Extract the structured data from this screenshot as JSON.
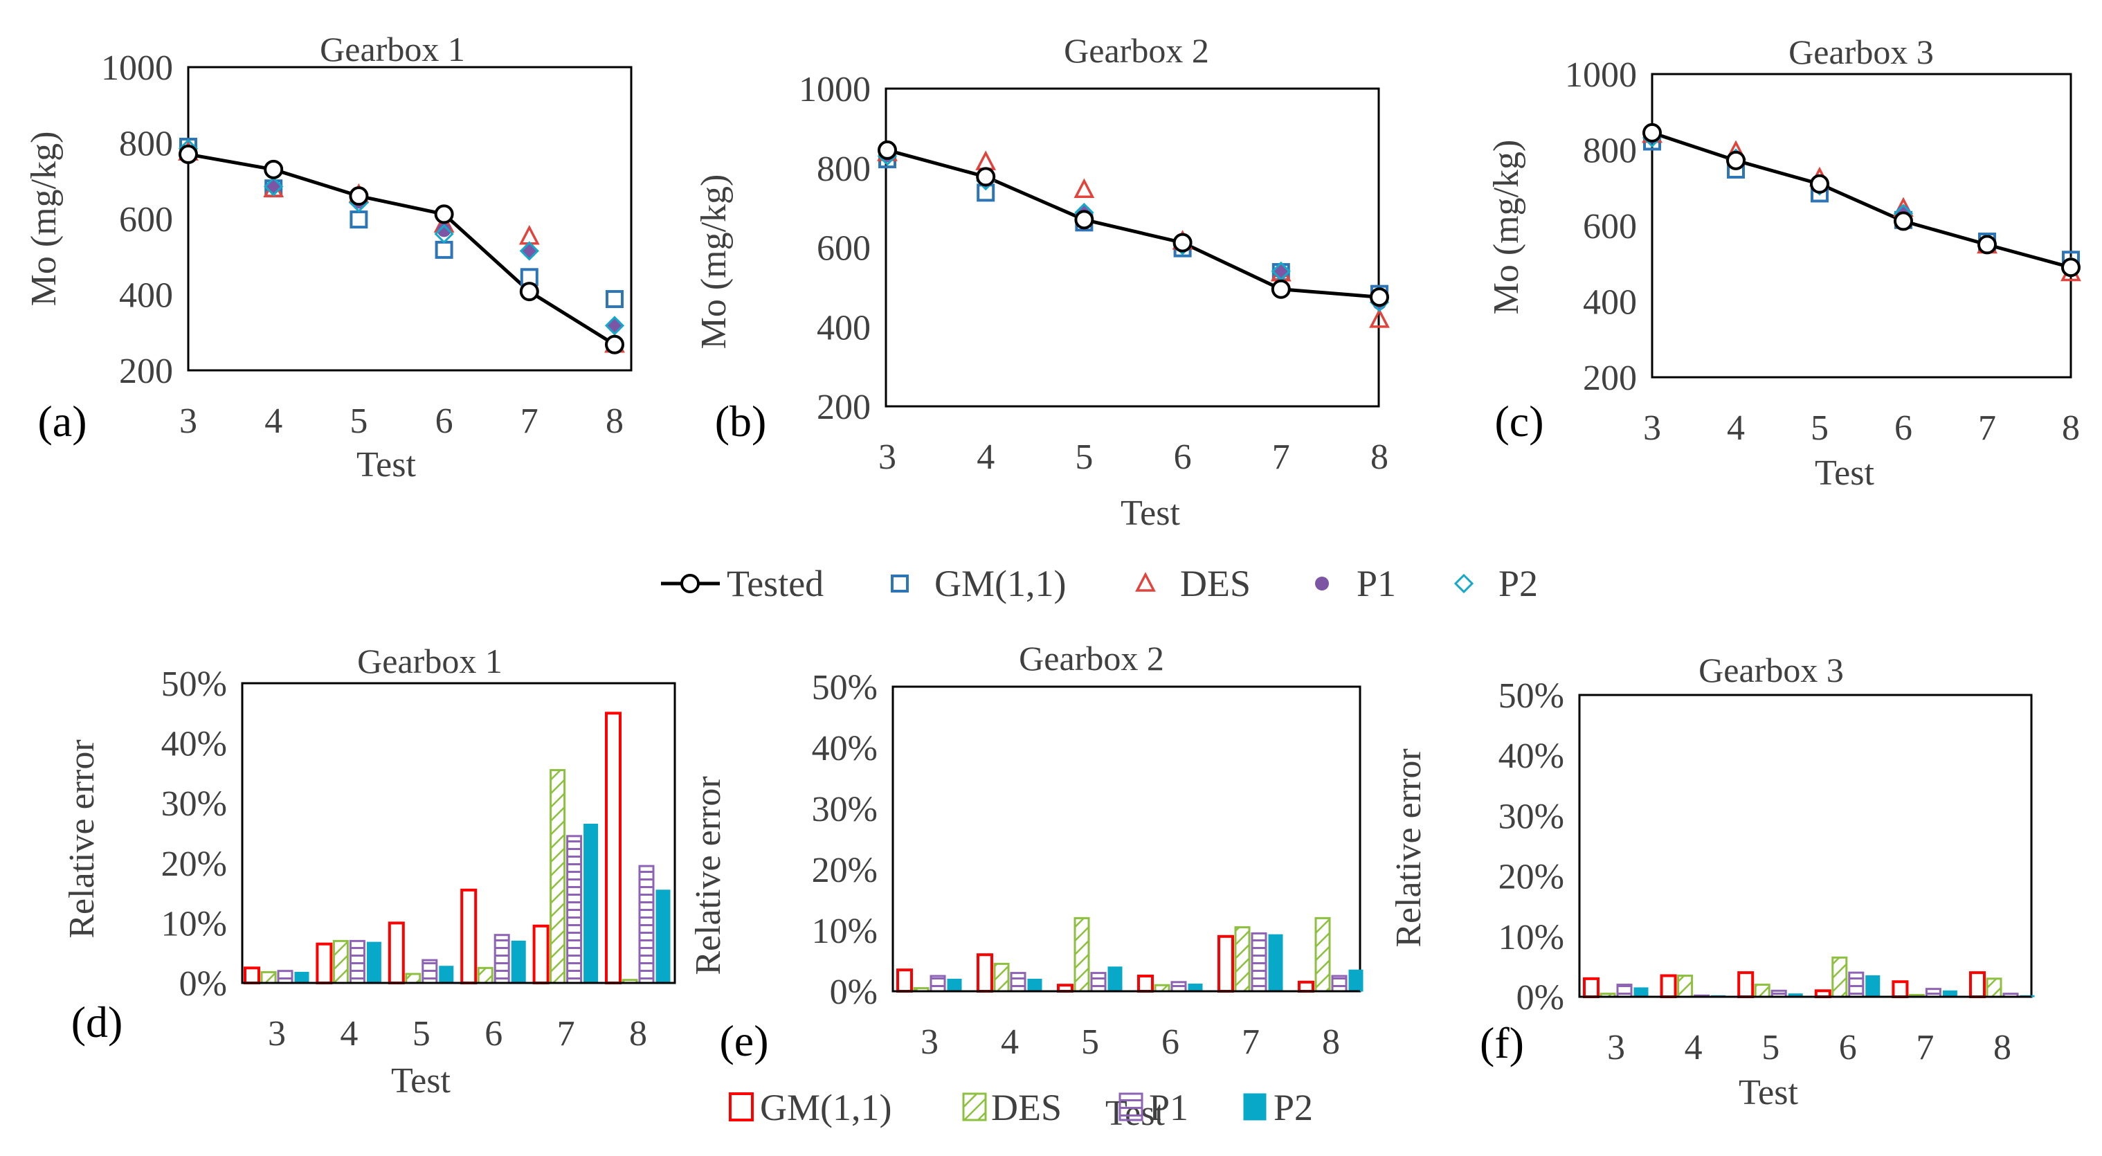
{
  "colors": {
    "tested": "#000000",
    "gm11": "#2E75B6",
    "des": "#E0443C",
    "p1": "#7C55A5",
    "p2": "#15A9C9",
    "bar_gm11": "#FF0000",
    "bar_des": "#8DC03F",
    "bar_p1": "#8E63B5",
    "bar_p2": "#08A8C8",
    "axis_text": "#404040"
  },
  "line_legend": [
    "Tested",
    "GM(1,1)",
    "DES",
    "P1",
    "P2"
  ],
  "bar_legend": [
    "GM(1,1)",
    "DES",
    "P1",
    "P2"
  ],
  "chart_data": [
    {
      "type": "line",
      "panel_label": "(a)",
      "title": "Gearbox 1",
      "xlabel": "Test",
      "ylabel": "Mo (mg/kg)",
      "categories": [
        "3",
        "4",
        "5",
        "6",
        "7",
        "8"
      ],
      "yticks": [
        "200",
        "400",
        "600",
        "800",
        "1000"
      ],
      "ylim": [
        200,
        1000
      ],
      "series": [
        {
          "name": "Tested",
          "values": [
            770,
            730,
            660,
            612,
            408,
            268
          ]
        },
        {
          "name": "GM(1,1)",
          "values": [
            790,
            680,
            598,
            518,
            446,
            388
          ]
        },
        {
          "name": "DES",
          "values": [
            775,
            678,
            663,
            585,
            553,
            268
          ]
        },
        {
          "name": "P1",
          "values": [
            775,
            685,
            645,
            570,
            515,
            318
          ]
        },
        {
          "name": "P2",
          "values": [
            785,
            685,
            642,
            560,
            515,
            318
          ]
        }
      ]
    },
    {
      "type": "line",
      "panel_label": "(b)",
      "title": "Gearbox 2",
      "xlabel": "Test",
      "ylabel": "Mo (mg/kg)",
      "categories": [
        "3",
        "4",
        "5",
        "6",
        "7",
        "8"
      ],
      "yticks": [
        "200",
        "400",
        "600",
        "800",
        "1000"
      ],
      "ylim": [
        200,
        1000
      ],
      "series": [
        {
          "name": "Tested",
          "values": [
            845,
            778,
            670,
            612,
            495,
            475
          ]
        },
        {
          "name": "GM(1,1)",
          "values": [
            822,
            738,
            663,
            598,
            538,
            483
          ]
        },
        {
          "name": "DES",
          "values": [
            838,
            815,
            745,
            615,
            535,
            418
          ]
        },
        {
          "name": "P1",
          "values": [
            832,
            768,
            688,
            605,
            538,
            460
          ]
        },
        {
          "name": "P2",
          "values": [
            830,
            768,
            688,
            605,
            540,
            462
          ]
        }
      ]
    },
    {
      "type": "line",
      "panel_label": "(c)",
      "title": "Gearbox 3",
      "xlabel": "Test",
      "ylabel": "Mo (mg/kg)",
      "categories": [
        "3",
        "4",
        "5",
        "6",
        "7",
        "8"
      ],
      "yticks": [
        "200",
        "400",
        "600",
        "800",
        "1000"
      ],
      "ylim": [
        200,
        1000
      ],
      "series": [
        {
          "name": "Tested",
          "values": [
            845,
            772,
            710,
            612,
            550,
            490
          ]
        },
        {
          "name": "GM(1,1)",
          "values": [
            822,
            748,
            685,
            615,
            558,
            510
          ]
        },
        {
          "name": "DES",
          "values": [
            840,
            795,
            725,
            645,
            548,
            475
          ]
        },
        {
          "name": "P1",
          "values": [
            835,
            780,
            708,
            635,
            552,
            492
          ]
        },
        {
          "name": "P2",
          "values": [
            832,
            778,
            705,
            632,
            553,
            492
          ]
        }
      ]
    },
    {
      "type": "bar",
      "panel_label": "(d)",
      "title": "Gearbox 1",
      "xlabel": "Test",
      "ylabel": "Relative error",
      "categories": [
        "3",
        "4",
        "5",
        "6",
        "7",
        "8"
      ],
      "yticks": [
        "0%",
        "10%",
        "20%",
        "30%",
        "40%",
        "50%"
      ],
      "ylim": [
        0,
        50
      ],
      "series": [
        {
          "name": "GM(1,1)",
          "values": [
            2.5,
            6.5,
            10.0,
            15.5,
            9.5,
            45.0
          ]
        },
        {
          "name": "DES",
          "values": [
            1.8,
            7.0,
            1.5,
            2.5,
            35.5,
            0.5
          ]
        },
        {
          "name": "P1",
          "values": [
            2.0,
            7.0,
            3.8,
            8.0,
            24.5,
            19.5
          ]
        },
        {
          "name": "P2",
          "values": [
            1.8,
            6.8,
            2.8,
            7.0,
            26.5,
            15.5
          ]
        }
      ]
    },
    {
      "type": "bar",
      "panel_label": "(e)",
      "title": "Gearbox 2",
      "xlabel": "Test",
      "ylabel": "Relative error",
      "categories": [
        "3",
        "4",
        "5",
        "6",
        "7",
        "8"
      ],
      "yticks": [
        "0%",
        "10%",
        "20%",
        "30%",
        "40%",
        "50%"
      ],
      "ylim": [
        0,
        50
      ],
      "series": [
        {
          "name": "GM(1,1)",
          "values": [
            3.5,
            6.0,
            1.0,
            2.5,
            9.0,
            1.5
          ]
        },
        {
          "name": "DES",
          "values": [
            0.5,
            4.5,
            12.0,
            1.0,
            10.5,
            12.0
          ]
        },
        {
          "name": "P1",
          "values": [
            2.5,
            3.0,
            3.0,
            1.5,
            9.5,
            2.5
          ]
        },
        {
          "name": "P2",
          "values": [
            2.0,
            2.0,
            4.0,
            1.2,
            9.3,
            3.5
          ]
        }
      ]
    },
    {
      "type": "bar",
      "panel_label": "(f)",
      "title": "Gearbox 3",
      "xlabel": "Test",
      "ylabel": "Relative error",
      "categories": [
        "3",
        "4",
        "5",
        "6",
        "7",
        "8"
      ],
      "yticks": [
        "0%",
        "10%",
        "20%",
        "30%",
        "40%",
        "50%"
      ],
      "ylim": [
        0,
        50
      ],
      "series": [
        {
          "name": "GM(1,1)",
          "values": [
            3.0,
            3.5,
            4.0,
            1.0,
            2.5,
            4.0
          ]
        },
        {
          "name": "DES",
          "values": [
            0.5,
            3.5,
            2.0,
            6.5,
            0.3,
            3.0
          ]
        },
        {
          "name": "P1",
          "values": [
            2.0,
            0.2,
            1.0,
            4.0,
            1.3,
            0.5
          ]
        },
        {
          "name": "P2",
          "values": [
            1.5,
            0.2,
            0.5,
            3.5,
            1.0,
            0.2
          ]
        }
      ]
    }
  ]
}
